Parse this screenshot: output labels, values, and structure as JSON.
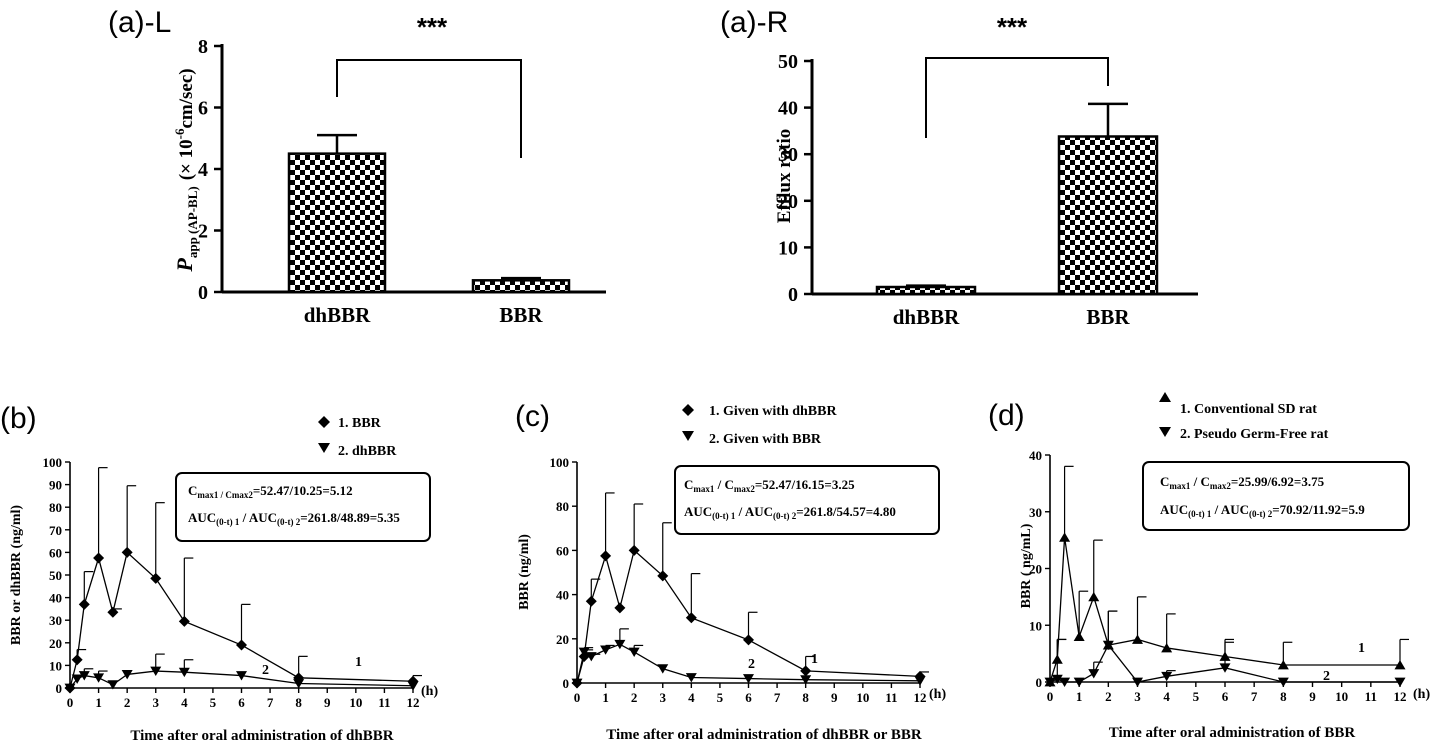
{
  "colors": {
    "ink": "#000000",
    "paper": "#ffffff"
  },
  "chart_data": [
    {
      "id": "aL",
      "type": "bar",
      "panel_label": "(a)-L",
      "categories": [
        "dhBBR",
        "BBR"
      ],
      "values": [
        4.5,
        0.38
      ],
      "errors": [
        0.6,
        0.07
      ],
      "ylabel_main": "P",
      "ylabel_sub": "app (AP-BL)",
      "ylabel_unit_pre": "(× 10",
      "ylabel_unit_sup": "-6",
      "ylabel_unit_post": "cm/sec)",
      "ylim": [
        0,
        8
      ],
      "yticks": [
        "0",
        "2",
        "4",
        "6",
        "8"
      ],
      "significance": "***",
      "bar_fill": "checkered"
    },
    {
      "id": "aR",
      "type": "bar",
      "panel_label": "(a)-R",
      "categories": [
        "dhBBR",
        "BBR"
      ],
      "values": [
        1.5,
        33.8
      ],
      "errors": [
        0.3,
        7.0
      ],
      "ylabel": "Efflux ratio",
      "ylim": [
        0,
        50
      ],
      "yticks": [
        "0",
        "10",
        "20",
        "30",
        "40",
        "50"
      ],
      "significance": "***",
      "bar_fill": "checkered"
    },
    {
      "id": "b",
      "type": "line",
      "panel_label": "(b)",
      "xlabel": "Time after oral administration of dhBBR",
      "ylabel": "BBR or dhBBR (ng/ml)",
      "x_unit": "(h)",
      "xlim": [
        0,
        12
      ],
      "ylim": [
        0,
        100
      ],
      "xticks": [
        "0",
        "1",
        "2",
        "3",
        "4",
        "5",
        "6",
        "7",
        "8",
        "9",
        "10",
        "11",
        "12"
      ],
      "yticks": [
        "0",
        "10",
        "20",
        "30",
        "40",
        "50",
        "60",
        "70",
        "80",
        "90",
        "100"
      ],
      "legend": [
        "1. BBR",
        "2. dhBBR"
      ],
      "legend_position": "top-right",
      "stat_box": {
        "line1_c": "C",
        "line1_s1": "max1",
        "line1_sep": " / C",
        "line1_s2": "max2",
        "line1_val": "=52.47/10.25=5.12",
        "line2_a": "AUC",
        "line2_s1": "(0-t) 1",
        "line2_sep": " / AUC",
        "line2_s2": "(0-t) 2",
        "line2_val": "=261.8/48.89=5.35"
      },
      "curve_labels": [
        "1",
        "2"
      ],
      "series": [
        {
          "name": "1. BBR",
          "marker": "diamond",
          "x": [
            0,
            0.25,
            0.5,
            1,
            1.5,
            2,
            3,
            4,
            6,
            8,
            12
          ],
          "y": [
            0,
            12.5,
            37,
            57.5,
            33.5,
            60,
            48.5,
            29.5,
            19,
            4.5,
            3
          ],
          "err": [
            0,
            4.5,
            14.5,
            40,
            1.5,
            29.5,
            33.5,
            28,
            18,
            9.5,
            2.5
          ]
        },
        {
          "name": "2. dhBBR",
          "marker": "triangle-down",
          "x": [
            0,
            0.25,
            0.5,
            1,
            1.5,
            2,
            3,
            4,
            6,
            8,
            12
          ],
          "y": [
            0,
            4,
            5.5,
            4.5,
            1.5,
            6,
            7.5,
            7,
            5.5,
            2,
            1
          ],
          "err": [
            0,
            1.5,
            3,
            3,
            0,
            0,
            7.5,
            5.5,
            0,
            0,
            0
          ]
        }
      ]
    },
    {
      "id": "c",
      "type": "line",
      "panel_label": "(c)",
      "xlabel": "Time after oral administration of dhBBR or BBR",
      "ylabel": "BBR (ng/ml)",
      "x_unit": "(h)",
      "xlim": [
        0,
        12
      ],
      "ylim": [
        0,
        100
      ],
      "xticks": [
        "0",
        "1",
        "2",
        "3",
        "4",
        "5",
        "6",
        "7",
        "8",
        "9",
        "10",
        "11",
        "12"
      ],
      "yticks": [
        "0",
        "20",
        "40",
        "60",
        "80",
        "100"
      ],
      "legend": [
        "1. Given with dhBBR",
        "2. Given with BBR"
      ],
      "legend_position": "top",
      "stat_box": {
        "line1_c": "C",
        "line1_s1": "max1",
        "line1_sep": " / C",
        "line1_s2": "max2",
        "line1_val": "=52.47/16.15=3.25",
        "line2_a": "AUC",
        "line2_s1": "(0-t) 1",
        "line2_sep": " / AUC",
        "line2_s2": "(0-t) 2",
        "line2_val": "=261.8/54.57=4.80"
      },
      "curve_labels": [
        "1",
        "2"
      ],
      "series": [
        {
          "name": "1. Given with dhBBR",
          "marker": "diamond",
          "x": [
            0,
            0.25,
            0.5,
            1,
            1.5,
            2,
            3,
            4,
            6,
            8,
            12
          ],
          "y": [
            0,
            12,
            37,
            57.5,
            34,
            60,
            48.5,
            29.5,
            19.5,
            5.5,
            3
          ],
          "err": [
            0,
            3,
            10,
            28.5,
            0,
            21,
            24,
            20,
            12.5,
            6.5,
            2
          ]
        },
        {
          "name": "2. Given with BBR",
          "marker": "triangle-down",
          "x": [
            0,
            0.25,
            0.5,
            1,
            1.5,
            2,
            3,
            4,
            6,
            8,
            12
          ],
          "y": [
            0,
            14,
            12,
            15,
            17.5,
            14,
            6.5,
            2.5,
            2,
            1.5,
            1
          ],
          "err": [
            0,
            2,
            1,
            2,
            7,
            3,
            0,
            0,
            0,
            0,
            0
          ]
        }
      ]
    },
    {
      "id": "d",
      "type": "line",
      "panel_label": "(d)",
      "xlabel": "Time after oral administration of BBR",
      "ylabel": "BBR ( ng/mL)",
      "x_unit": "(h)",
      "xlim": [
        0,
        12
      ],
      "ylim": [
        0,
        40
      ],
      "xticks": [
        "0",
        "1",
        "2",
        "3",
        "4",
        "5",
        "6",
        "7",
        "8",
        "9",
        "10",
        "11",
        "12"
      ],
      "yticks": [
        "0",
        "10",
        "20",
        "30",
        "40"
      ],
      "legend": [
        "1. Conventional SD rat",
        "2. Pseudo Germ-Free rat"
      ],
      "legend_position": "top-right",
      "stat_box": {
        "line1_c": "C",
        "line1_s1": "max1",
        "line1_sep": " / C",
        "line1_s2": "max2",
        "line1_val": "=25.99/6.92=3.75",
        "line2_a": "AUC",
        "line2_s1": "(0-t) 1",
        "line2_sep": " / AUC",
        "line2_s2": "(0-t) 2",
        "line2_val": "=70.92/11.92=5.9"
      },
      "curve_labels": [
        "1",
        "2"
      ],
      "series": [
        {
          "name": "1. Conventional SD rat",
          "marker": "triangle-up",
          "x": [
            0,
            0.25,
            0.5,
            1,
            1.5,
            2,
            3,
            4,
            6,
            8,
            12
          ],
          "y": [
            0,
            4,
            25.5,
            8,
            15,
            6.5,
            7.5,
            6,
            4.5,
            3,
            3
          ],
          "err": [
            0,
            3.5,
            12.5,
            8,
            10,
            6,
            7.5,
            6,
            3,
            4,
            4.5
          ]
        },
        {
          "name": "2. Pseudo Germ-Free rat",
          "marker": "triangle-down",
          "x": [
            0,
            0.25,
            0.5,
            1,
            1.5,
            2,
            3,
            4,
            6,
            8,
            12
          ],
          "y": [
            0,
            0.5,
            0,
            0,
            1.5,
            6.5,
            0,
            1,
            2.5,
            0,
            0
          ],
          "err": [
            0,
            7,
            0,
            0,
            2,
            6,
            0,
            1,
            4.5,
            0,
            0
          ]
        }
      ]
    }
  ]
}
